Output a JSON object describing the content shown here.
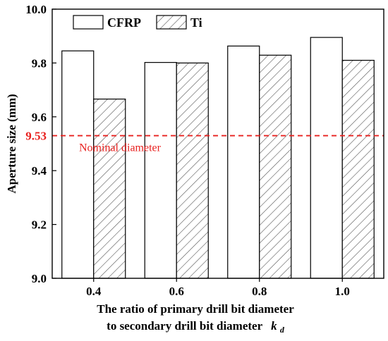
{
  "chart_data": {
    "type": "bar",
    "categories": [
      "0.4",
      "0.6",
      "0.8",
      "1.0"
    ],
    "series": [
      {
        "name": "CFRP",
        "values": [
          9.845,
          9.802,
          9.863,
          9.895
        ],
        "fill": "#ffffff",
        "pattern": "none"
      },
      {
        "name": "Ti",
        "values": [
          9.666,
          9.8,
          9.829,
          9.81
        ],
        "fill": "#ffffff",
        "pattern": "diagonal-hatch"
      }
    ],
    "ylabel": "Aperture size (mm)",
    "xlabel_line1": "The ratio of primary drill bit diameter",
    "xlabel_line2": "to secondary drill bit diameter",
    "xlabel_symbol": "k",
    "xlabel_subscript": "d",
    "ylim": [
      9.0,
      10.0
    ],
    "yticks": [
      "9.0",
      "9.2",
      "9.4",
      "9.6",
      "9.8",
      "10.0"
    ],
    "reference_line": {
      "value": 9.53,
      "label": "9.53",
      "annotation": "Nominal diameter",
      "color": "#e8211f",
      "style": "dashed"
    },
    "legend": {
      "placement": "top-left",
      "orientation": "horizontal"
    },
    "grid": false
  }
}
